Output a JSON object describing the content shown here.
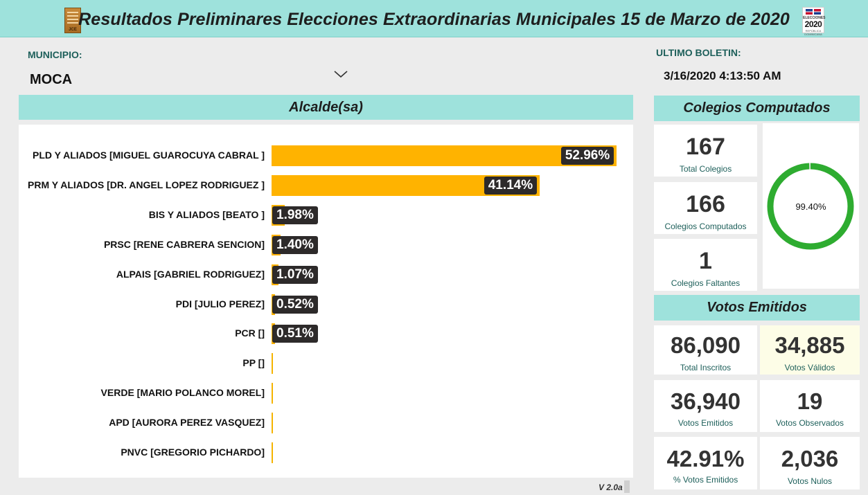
{
  "header": {
    "title": "Resultados Preliminares Elecciones Extraordinarias Municipales 15 de Marzo de 2020",
    "logo_left_text": "JCE",
    "logo_right": {
      "line1": "ELECCIONES",
      "line2": "2020",
      "line3": "REPÚBLICA DOMINICANA"
    }
  },
  "municipio": {
    "label": "MUNICIPIO:",
    "value": "MOCA"
  },
  "boletin": {
    "label": "ULTIMO BOLETIN:",
    "value": "3/16/2020 4:13:50 AM"
  },
  "alcalde": {
    "title": "Alcalde(sa)"
  },
  "chart_data": {
    "type": "bar",
    "orientation": "horizontal",
    "title": "Alcalde(sa)",
    "categories": [
      "PLD Y ALIADOS [MIGUEL GUAROCUYA CABRAL ]",
      "PRM Y ALIADOS [DR. ANGEL LOPEZ RODRIGUEZ ]",
      "BIS Y ALIADOS [BEATO ]",
      "PRSC [RENE CABRERA SENCION]",
      "ALPAIS [GABRIEL RODRIGUEZ]",
      "PDI [JULIO PEREZ]",
      "PCR []",
      "PP []",
      "VERDE [MARIO POLANCO MOREL]",
      "APD [AURORA PEREZ VASQUEZ]",
      "PNVC [GREGORIO PICHARDO]"
    ],
    "values": [
      52.96,
      41.14,
      1.98,
      1.4,
      1.07,
      0.52,
      0.51,
      0,
      0,
      0,
      0
    ],
    "labels": [
      "52.96%",
      "41.14%",
      "1.98%",
      "1.40%",
      "1.07%",
      "0.52%",
      "0.51%",
      "",
      "",
      "",
      ""
    ],
    "bar_color": "#ffb300",
    "xlim": [
      0,
      60
    ]
  },
  "colegios": {
    "title": "Colegios Computados",
    "total": {
      "value": "167",
      "label": "Total Colegios"
    },
    "computados": {
      "value": "166",
      "label": "Colegios Computados"
    },
    "faltantes": {
      "value": "1",
      "label": "Colegios Faltantes"
    },
    "gauge": {
      "value": 99.4,
      "text": "99.40%",
      "color": "#2eac30"
    }
  },
  "votos": {
    "title": "Votos Emitidos",
    "inscritos": {
      "value": "86,090",
      "label": "Total Inscritos"
    },
    "validos": {
      "value": "34,885",
      "label": "Votos Válidos"
    },
    "emitidos": {
      "value": "36,940",
      "label": "Votos Emitidos"
    },
    "observados": {
      "value": "19",
      "label": "Votos Observados"
    },
    "pct_emitidos": {
      "value": "42.91%",
      "label": "% Votos Emitidos"
    },
    "nulos": {
      "value": "2,036",
      "label": "Votos Nulos"
    }
  },
  "footer": {
    "version": "V 2.0a"
  }
}
